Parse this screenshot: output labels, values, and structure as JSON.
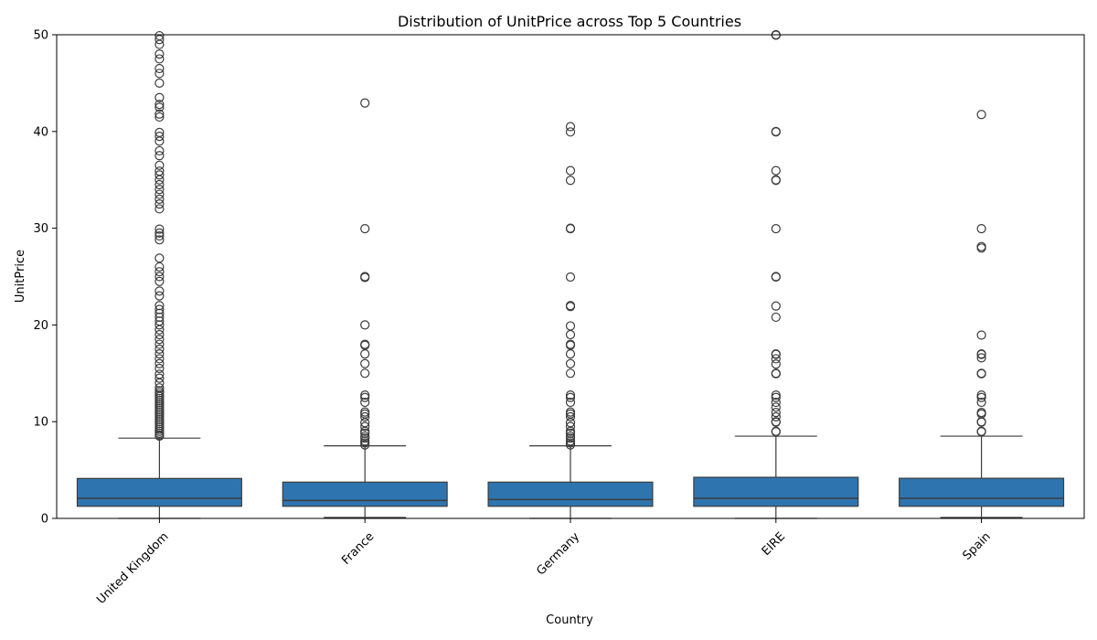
{
  "chart_data": {
    "type": "box",
    "title": "Distribution of UnitPrice across Top 5 Countries",
    "xlabel": "Country",
    "ylabel": "UnitPrice",
    "ylim": [
      0,
      50
    ],
    "yticks": [
      0,
      10,
      20,
      30,
      40,
      50
    ],
    "grid": false,
    "box_color": "#2e75b0",
    "edge_color": "#3c3c3c",
    "categories": [
      "United Kingdom",
      "France",
      "Germany",
      "EIRE",
      "Spain"
    ],
    "boxes": [
      {
        "category": "United Kingdom",
        "whisker_low": 0,
        "q1": 1.25,
        "median": 2.08,
        "q3": 4.13,
        "whisker_high": 8.3,
        "outliers": [
          8.5,
          8.6,
          8.8,
          9.0,
          9.2,
          9.4,
          9.6,
          9.8,
          10.0,
          10.2,
          10.4,
          10.6,
          10.8,
          11.0,
          11.2,
          11.4,
          11.6,
          11.8,
          12.0,
          12.2,
          12.4,
          12.6,
          12.8,
          13.0,
          13.2,
          13.5,
          14.0,
          14.5,
          14.9,
          15.5,
          16.0,
          16.5,
          17.0,
          17.5,
          18.0,
          18.5,
          19.0,
          19.5,
          20.0,
          20.4,
          20.8,
          21.2,
          21.6,
          22.0,
          23.0,
          23.5,
          24.5,
          25.0,
          25.5,
          26.0,
          26.9,
          28.8,
          29.2,
          29.5,
          29.9,
          32.0,
          32.5,
          33.0,
          33.5,
          34.0,
          34.5,
          35.0,
          35.5,
          35.9,
          36.5,
          37.5,
          38.0,
          39.0,
          39.5,
          39.9,
          41.5,
          41.8,
          42.5,
          42.8,
          43.5,
          45.0,
          46.0,
          46.5,
          47.5,
          48.0,
          49.0,
          49.5,
          49.9
        ]
      },
      {
        "category": "France",
        "whisker_low": 0.1,
        "q1": 1.25,
        "median": 1.85,
        "q3": 3.75,
        "whisker_high": 7.5,
        "outliers": [
          7.6,
          7.8,
          8.0,
          8.3,
          8.5,
          8.8,
          9.0,
          9.5,
          9.9,
          10.5,
          10.8,
          11.0,
          12.0,
          12.5,
          12.75,
          15.0,
          16.0,
          17.0,
          17.9,
          18.0,
          20.0,
          24.9,
          25.0,
          29.95,
          42.95
        ]
      },
      {
        "category": "Germany",
        "whisker_low": 0,
        "q1": 1.25,
        "median": 1.95,
        "q3": 3.75,
        "whisker_high": 7.5,
        "outliers": [
          7.6,
          7.8,
          8.0,
          8.3,
          8.5,
          8.8,
          9.0,
          9.5,
          9.9,
          10.5,
          10.8,
          11.0,
          12.0,
          12.5,
          12.75,
          15.0,
          16.0,
          17.0,
          17.9,
          18.0,
          19.0,
          19.9,
          21.9,
          22.0,
          24.95,
          29.95,
          30.0,
          34.95,
          35.95,
          39.95,
          40.5
        ]
      },
      {
        "category": "EIRE",
        "whisker_low": 0,
        "q1": 1.25,
        "median": 2.08,
        "q3": 4.25,
        "whisker_high": 8.5,
        "outliers": [
          8.95,
          9.0,
          9.95,
          10.0,
          10.5,
          10.95,
          11.5,
          12.0,
          12.5,
          12.75,
          14.95,
          15.0,
          15.95,
          16.5,
          16.95,
          17.0,
          20.8,
          21.95,
          24.95,
          25.0,
          29.95,
          34.95,
          35.0,
          35.95,
          39.95,
          40.0,
          49.95,
          50.0
        ]
      },
      {
        "category": "Spain",
        "whisker_low": 0.1,
        "q1": 1.25,
        "median": 2.08,
        "q3": 4.15,
        "whisker_high": 8.5,
        "outliers": [
          8.95,
          9.0,
          9.95,
          10.0,
          10.8,
          10.95,
          12.0,
          12.5,
          12.75,
          14.95,
          15.0,
          16.6,
          16.95,
          17.0,
          18.95,
          27.95,
          28.1,
          29.95,
          41.75
        ]
      }
    ]
  }
}
